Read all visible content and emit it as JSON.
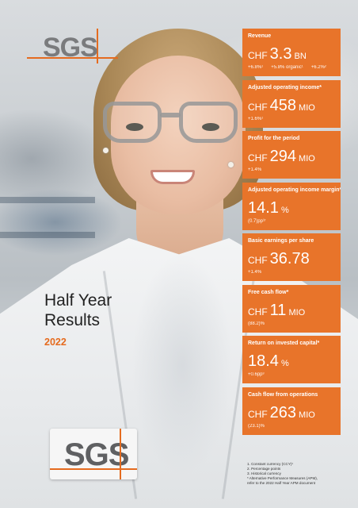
{
  "brand": {
    "logo_text": "SGS",
    "badge_text": "SGS",
    "accent": "#e56b1f",
    "panel_color": "#e8742a"
  },
  "title": {
    "line1": "Half Year",
    "line2": "Results",
    "year": "2022"
  },
  "kpis": [
    {
      "label": "Revenue",
      "currency": "CHF",
      "value": "3.3",
      "unit": "BN",
      "subs": [
        "+6.8%¹",
        "+5.8% organic¹",
        "+6.2%²"
      ]
    },
    {
      "label": "Adjusted operating income*",
      "currency": "CHF",
      "value": "458",
      "unit": "MIO",
      "subs": [
        "+1.6%¹"
      ]
    },
    {
      "label": "Profit for the period",
      "currency": "CHF",
      "value": "294",
      "unit": "MIO",
      "subs": [
        "+1.4%"
      ]
    },
    {
      "label": "Adjusted operating income margin*",
      "currency": "",
      "value": "14.1",
      "unit": "%",
      "subs": [
        "(0.7)pp¹ʳ"
      ]
    },
    {
      "label": "Basic earnings per share",
      "currency": "CHF",
      "value": "36.78",
      "unit": "",
      "subs": [
        "+1.4%"
      ]
    },
    {
      "label": "Free cash flow*",
      "currency": "CHF",
      "value": "11",
      "unit": "MIO",
      "subs": [
        "(88.2)%"
      ]
    },
    {
      "label": "Return on invested capital*",
      "currency": "",
      "value": "18.4",
      "unit": "%",
      "subs": [
        "+0.6pp³"
      ]
    },
    {
      "label": "Cash flow from operations",
      "currency": "CHF",
      "value": "263",
      "unit": "MIO",
      "subs": [
        "(23.1)%"
      ]
    }
  ],
  "footnotes": [
    "1.  Constant currency (CCY)¹",
    "2.  Percentage points",
    "3.  Historical currency",
    "*   Alternative Performance Measures (APM),",
    "    refer to the 2022 Half Year APM document"
  ]
}
